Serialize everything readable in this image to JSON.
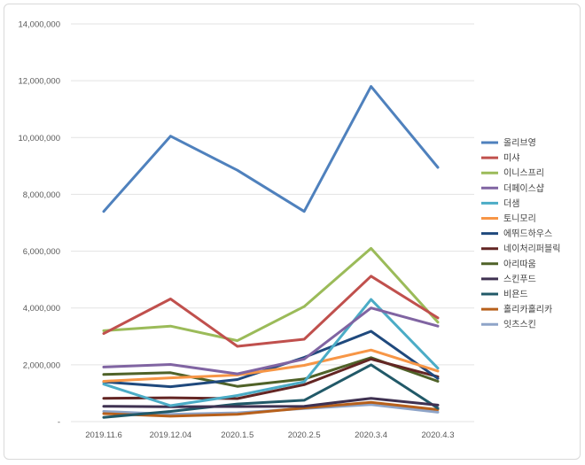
{
  "chart_data": {
    "type": "line",
    "title": "",
    "xlabel": "",
    "ylabel": "",
    "categories": [
      "2019.11.6",
      "2019.12.04",
      "2020.1.5",
      "2020.2.5",
      "2020.3.4",
      "2020.4.3"
    ],
    "ylim": [
      0,
      14000000
    ],
    "yticks": [
      0,
      2000000,
      4000000,
      6000000,
      8000000,
      10000000,
      12000000,
      14000000
    ],
    "ytick_labels": [
      "-",
      "2,000,000",
      "4,000,000",
      "6,000,000",
      "8,000,000",
      "10,000,000",
      "12,000,000",
      "14,000,000"
    ],
    "grid": true,
    "legend_position": "right",
    "series": [
      {
        "name": "올리브영",
        "color": "#4f81bd",
        "values": [
          7400000,
          10050000,
          8850000,
          7400000,
          11800000,
          8950000
        ]
      },
      {
        "name": "미샤",
        "color": "#c0504d",
        "values": [
          3100000,
          4320000,
          2650000,
          2900000,
          5120000,
          3650000
        ]
      },
      {
        "name": "이니스프리",
        "color": "#9bbb59",
        "values": [
          3200000,
          3360000,
          2850000,
          4050000,
          6100000,
          3500000
        ]
      },
      {
        "name": "더페이스샵",
        "color": "#8064a2",
        "values": [
          1920000,
          2010000,
          1680000,
          2200000,
          4000000,
          3360000
        ]
      },
      {
        "name": "더샘",
        "color": "#4bacc6",
        "values": [
          1320000,
          560000,
          920000,
          1400000,
          4300000,
          1880000
        ]
      },
      {
        "name": "토니모리",
        "color": "#f79646",
        "values": [
          1420000,
          1540000,
          1640000,
          1980000,
          2520000,
          1780000
        ]
      },
      {
        "name": "에뛰드하우스",
        "color": "#1f497d",
        "values": [
          1400000,
          1230000,
          1480000,
          2260000,
          3180000,
          1520000
        ]
      },
      {
        "name": "네이처리퍼블릭",
        "color": "#632523",
        "values": [
          820000,
          840000,
          810000,
          1300000,
          2200000,
          1580000
        ]
      },
      {
        "name": "아리따움",
        "color": "#4f6228",
        "values": [
          1660000,
          1720000,
          1240000,
          1500000,
          2250000,
          1420000
        ]
      },
      {
        "name": "스킨푸드",
        "color": "#3f3151",
        "values": [
          540000,
          520000,
          530000,
          540000,
          820000,
          580000
        ]
      },
      {
        "name": "비욘드",
        "color": "#215968",
        "values": [
          150000,
          360000,
          620000,
          750000,
          2000000,
          470000
        ]
      },
      {
        "name": "홀리카홀리카",
        "color": "#b7601b",
        "values": [
          280000,
          190000,
          260000,
          480000,
          680000,
          420000
        ]
      },
      {
        "name": "잇츠스킨",
        "color": "#8ea4c8",
        "values": [
          360000,
          260000,
          310000,
          460000,
          600000,
          330000
        ]
      }
    ]
  }
}
